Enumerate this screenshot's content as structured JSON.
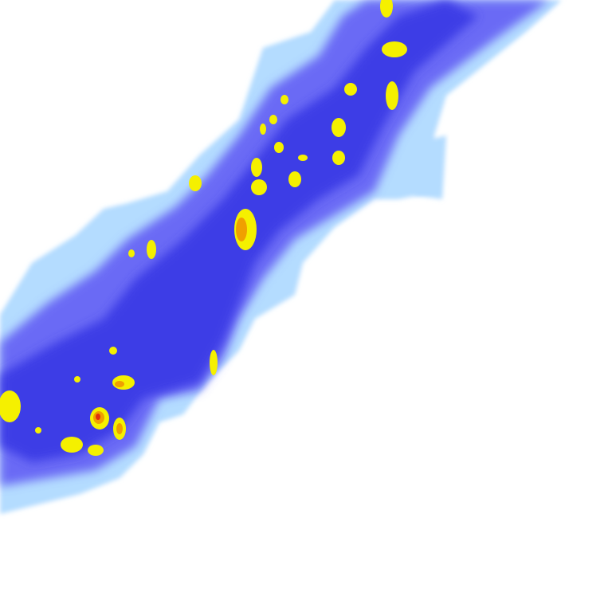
{
  "map": {
    "type": "precipitation-radar-tile",
    "background": "#ffffff",
    "intensity_colors": {
      "light": "#b4dcff",
      "moderate": "#6a6af5",
      "heavy": "#3c3ce6",
      "very_heavy": "#f5f000",
      "intense": "#f0a000",
      "extreme": "#e03010"
    }
  }
}
